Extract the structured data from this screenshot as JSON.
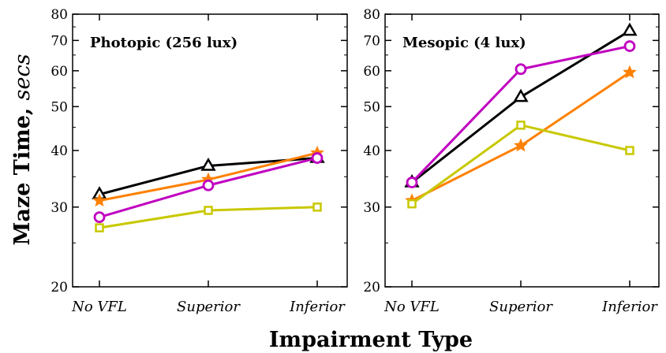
{
  "figure": {
    "ylabel_main": "Maze Time,",
    "ylabel_unit": "secs",
    "xlabel": "Impairment Type"
  },
  "chart_data": [
    {
      "type": "line",
      "title": "Photopic (256 lux)",
      "categories": [
        "No VFL",
        "Superior",
        "Inferior"
      ],
      "yscale": "log",
      "ylim": [
        20,
        80
      ],
      "yticks": [
        20,
        30,
        40,
        50,
        60,
        70,
        80
      ],
      "grid": false,
      "series": [
        {
          "color": "#000000",
          "marker": "triangle",
          "values": [
            32,
            37,
            38.5
          ]
        },
        {
          "color": "#ff8000",
          "marker": "star",
          "values": [
            31,
            34.5,
            39.5
          ]
        },
        {
          "color": "#c000c0",
          "marker": "circle",
          "values": [
            28.5,
            33.5,
            38.5
          ]
        },
        {
          "color": "#c8c800",
          "marker": "square",
          "values": [
            27,
            29.5,
            30
          ]
        }
      ]
    },
    {
      "type": "line",
      "title": "Mesopic (4 lux)",
      "categories": [
        "No VFL",
        "Superior",
        "Inferior"
      ],
      "yscale": "log",
      "ylim": [
        20,
        80
      ],
      "yticks": [
        20,
        30,
        40,
        50,
        60,
        70,
        80
      ],
      "grid": false,
      "series": [
        {
          "color": "#000000",
          "marker": "triangle",
          "values": [
            34,
            52.5,
            73.5
          ]
        },
        {
          "color": "#c000c0",
          "marker": "circle",
          "values": [
            34,
            60.5,
            68
          ]
        },
        {
          "color": "#ff8000",
          "marker": "star",
          "values": [
            31,
            41,
            59.5
          ]
        },
        {
          "color": "#c8c800",
          "marker": "square",
          "values": [
            30.5,
            45.5,
            40
          ]
        }
      ]
    }
  ]
}
